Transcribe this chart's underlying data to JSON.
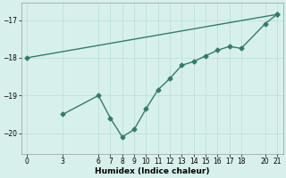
{
  "line1_x": [
    0,
    21
  ],
  "line1_y": [
    -18,
    -16.85
  ],
  "line2_x": [
    3,
    6,
    7,
    8,
    9,
    10,
    11,
    12,
    13,
    14,
    15,
    16,
    17,
    18,
    20,
    21
  ],
  "line2_y": [
    -19.5,
    -19.0,
    -19.6,
    -20.1,
    -19.9,
    -19.35,
    -18.85,
    -18.55,
    -18.2,
    -18.1,
    -17.95,
    -17.8,
    -17.7,
    -17.75,
    -17.1,
    -16.85
  ],
  "xlabel": "Humidex (Indice chaleur)",
  "xlim": [
    -0.5,
    21.5
  ],
  "ylim": [
    -20.55,
    -16.55
  ],
  "yticks": [
    -20,
    -19,
    -18,
    -17
  ],
  "xticks": [
    0,
    3,
    6,
    7,
    8,
    9,
    10,
    11,
    12,
    13,
    14,
    15,
    16,
    17,
    18,
    20,
    21
  ],
  "line_color": "#2e7d6e",
  "bg_color": "#d8f0ec",
  "grid_color": "#b8ddd6",
  "marker": "D",
  "marker_size": 2.5,
  "line_width": 1.0
}
